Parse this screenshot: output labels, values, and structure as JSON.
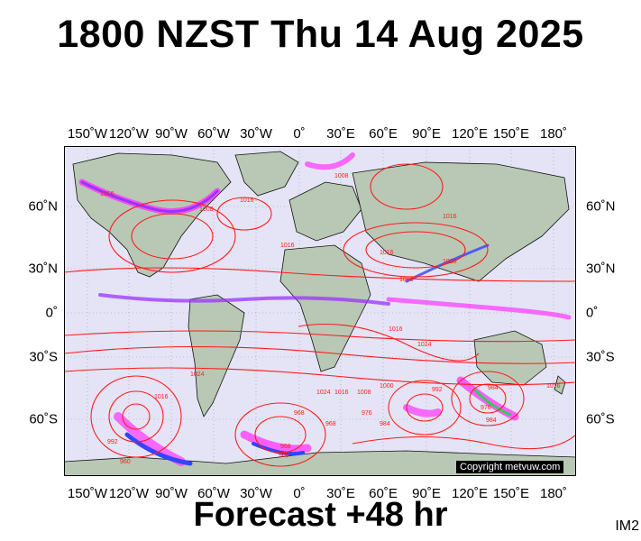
{
  "title": "1800 NZST Thu 14 Aug 2025",
  "footer": "Forecast +48 hr",
  "image_tag": "IM2",
  "copyright": "Copyright metvuw.com",
  "lon_labels": [
    "150˚W",
    "120˚W",
    "90˚W",
    "60˚W",
    "30˚W",
    "0˚",
    "30˚E",
    "60˚E",
    "90˚E",
    "120˚E",
    "150˚E",
    "180˚"
  ],
  "lat_labels": [
    "60˚N",
    "30˚N",
    "0˚",
    "30˚S",
    "60˚S"
  ],
  "isobar_labels": [
    "1016",
    "1008",
    "1016",
    "1016",
    "1008",
    "1016",
    "1016",
    "1000",
    "1008",
    "1024",
    "1016",
    "1024",
    "1016",
    "1008",
    "1000",
    "992",
    "984",
    "976",
    "968",
    "960",
    "992",
    "984",
    "976",
    "984",
    "968",
    "960",
    "968",
    "1024",
    "1016",
    "1016"
  ],
  "colors": {
    "ocean": "#e4e4f6",
    "land": "#b8c8b4",
    "isobar": "#ff1a1a",
    "rain_magenta": "#ff33ff",
    "rain_purple": "#9933ff",
    "rain_blue": "#3344ff",
    "rain_green": "#33cc55"
  }
}
